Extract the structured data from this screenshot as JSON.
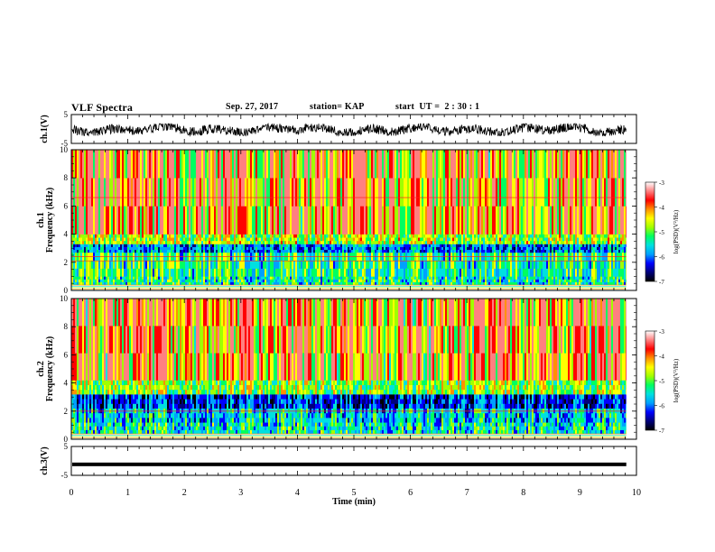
{
  "header": {
    "title": "VLF Spectra",
    "date": "Sep. 27, 2017",
    "station": "station= KAP",
    "start_time": "start  UT =  2 : 30 : 1"
  },
  "chart_data": [
    {
      "type": "line",
      "panel": "ch1-waveform",
      "ylabel": "ch.1(V)",
      "ylim": [
        -5,
        5
      ],
      "y_ticks": [
        "5",
        "-5"
      ],
      "xlim": [
        0,
        10
      ],
      "x_data_range": [
        0,
        9.82
      ],
      "amplitude_range": [
        -2.3,
        1.8
      ],
      "color": "#000000"
    },
    {
      "type": "heatmap",
      "panel": "ch1-spectrogram",
      "ylabel": "ch.1\nFrequency  (kHz)",
      "ylim": [
        0,
        10
      ],
      "y_ticks": [
        "0",
        "2",
        "4",
        "6",
        "8",
        "10"
      ],
      "xlim": [
        0,
        10
      ],
      "x_data_range": [
        0,
        9.82
      ],
      "bands_khz": [
        {
          "from": 0.0,
          "to": 0.4,
          "level": "striped"
        },
        {
          "from": 0.4,
          "to": 1.0,
          "level": -5.3
        },
        {
          "from": 1.0,
          "to": 2.7,
          "level": -5.2
        },
        {
          "from": 2.7,
          "to": 3.3,
          "level": -5.9
        },
        {
          "from": 3.3,
          "to": 4.0,
          "level": -4.7
        },
        {
          "from": 4.0,
          "to": 10.0,
          "level": -4.0
        }
      ],
      "lines_khz": [
        6.6,
        2.4,
        2.1
      ],
      "colorbar": {
        "label": "log(PSD)(V²/Hz)",
        "range": [
          -7,
          -3
        ],
        "ticks": [
          "-3",
          "-4",
          "-5",
          "-6",
          "-7"
        ],
        "colors": [
          "#000000",
          "#00007a",
          "#0000ff",
          "#00a0ff",
          "#00e0e0",
          "#00ff60",
          "#a0ff00",
          "#ffff00",
          "#ff9000",
          "#ff0000",
          "#ff8080",
          "#ffffff"
        ]
      }
    },
    {
      "type": "heatmap",
      "panel": "ch2-spectrogram",
      "ylabel": "ch.2\nFrequency  (kHz)",
      "ylim": [
        0,
        10
      ],
      "y_ticks": [
        "0",
        "2",
        "4",
        "6",
        "8",
        "10"
      ],
      "xlim": [
        0,
        10
      ],
      "x_data_range": [
        0,
        9.82
      ],
      "bands_khz": [
        {
          "from": 0.0,
          "to": 0.4,
          "level": "striped"
        },
        {
          "from": 0.4,
          "to": 1.2,
          "level": -5.4
        },
        {
          "from": 1.2,
          "to": 2.2,
          "level": -5.6
        },
        {
          "from": 2.2,
          "to": 3.2,
          "level": -6.2
        },
        {
          "from": 3.2,
          "to": 4.2,
          "level": -4.8
        },
        {
          "from": 4.2,
          "to": 10.0,
          "level": -4.0
        }
      ],
      "lines_khz": [
        2.0
      ],
      "colorbar": {
        "label": "log(PSD)(V²/Hz)",
        "range": [
          -7,
          -3
        ],
        "ticks": [
          "-3",
          "-4",
          "-5",
          "-6",
          "-7"
        ],
        "colors": [
          "#000000",
          "#00007a",
          "#0000ff",
          "#00a0ff",
          "#00e0e0",
          "#00ff60",
          "#a0ff00",
          "#ffff00",
          "#ff9000",
          "#ff0000",
          "#ff8080",
          "#ffffff"
        ]
      }
    },
    {
      "type": "line",
      "panel": "ch3-waveform",
      "ylabel": "ch.3(V)",
      "ylim": [
        -5,
        5
      ],
      "y_ticks": [
        "5",
        "-5"
      ],
      "xlim": [
        0,
        10
      ],
      "x_data_range": [
        0,
        9.82
      ],
      "level": -1.2,
      "color": "#000000"
    }
  ],
  "x_axis": {
    "label": "Time  (min)",
    "ticks": [
      "0",
      "1",
      "2",
      "3",
      "4",
      "5",
      "6",
      "7",
      "8",
      "9",
      "10"
    ]
  }
}
